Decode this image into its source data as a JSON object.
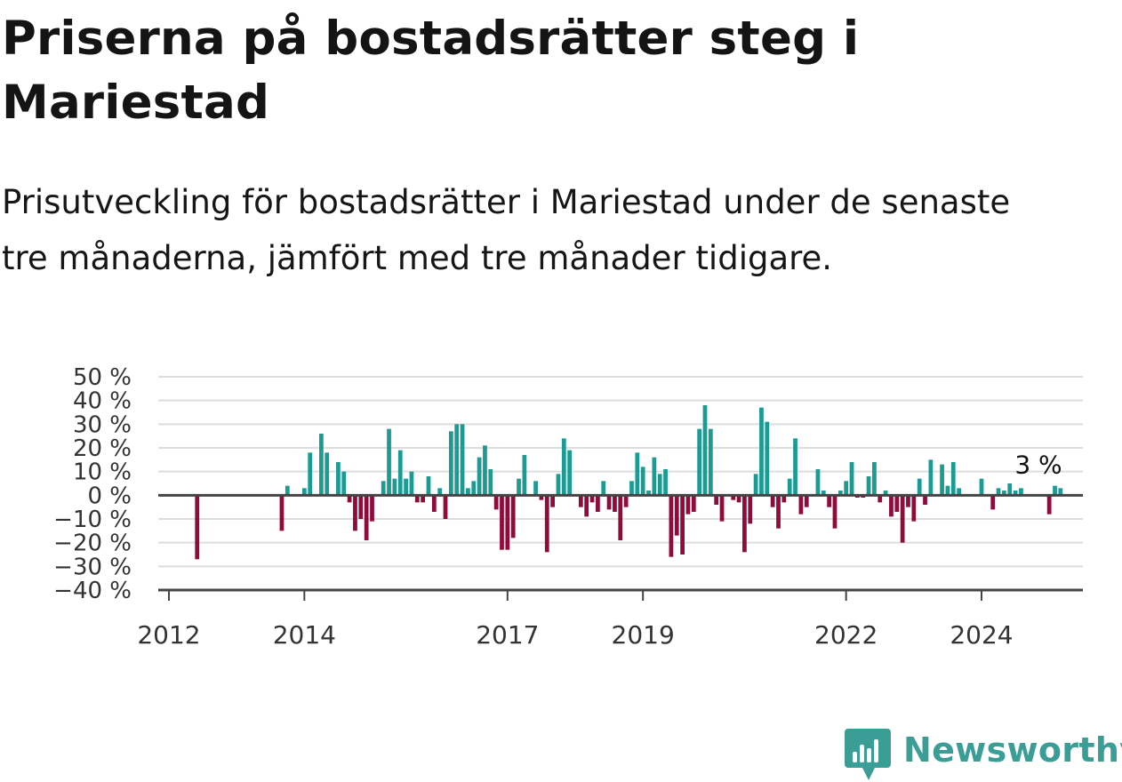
{
  "title": "Priserna på bostadsrätter steg i Mariestad",
  "subtitle": "Prisutveckling för bostadsrätter i Mariestad under de senaste tre månaderna, jämfört med tre månader tidigare.",
  "brand": {
    "name": "Newsworthy",
    "icon": "newsworthy-logo-icon",
    "color": "#3a9e97"
  },
  "colors": {
    "positive": "#1a9c94",
    "negative": "#900a3a",
    "grid": "#dddddd",
    "axis": "#444444",
    "text": "#333333"
  },
  "chart_data": {
    "type": "bar",
    "title": "Priserna på bostadsrätter steg i Mariestad",
    "xlabel": "",
    "ylabel": "",
    "ylim": [
      -40,
      50
    ],
    "y_ticks": [
      50,
      40,
      30,
      20,
      10,
      0,
      -10,
      -20,
      -30,
      -40
    ],
    "y_tick_labels": [
      "50 %",
      "40 %",
      "30 %",
      "20 %",
      "10 %",
      "0 %",
      "−10 %",
      "−20 %",
      "−30 %",
      "−40 %"
    ],
    "x_range": [
      "2011-12",
      "2025-10"
    ],
    "x_ticks": [
      {
        "date": "2012-01",
        "label": "2012"
      },
      {
        "date": "2014-01",
        "label": "2014"
      },
      {
        "date": "2017-01",
        "label": "2017"
      },
      {
        "date": "2019-01",
        "label": "2019"
      },
      {
        "date": "2022-01",
        "label": "2022"
      },
      {
        "date": "2024-01",
        "label": "2024"
      }
    ],
    "grid": true,
    "last_value_label": "3 %",
    "series": [
      {
        "values": [
          [
            "2012-06",
            -27
          ],
          [
            "2013-09",
            -15
          ],
          [
            "2013-10",
            4
          ],
          [
            "2014-01",
            3
          ],
          [
            "2014-02",
            18
          ],
          [
            "2014-04",
            26
          ],
          [
            "2014-05",
            18
          ],
          [
            "2014-07",
            14
          ],
          [
            "2014-08",
            10
          ],
          [
            "2014-09",
            -3
          ],
          [
            "2014-10",
            -15
          ],
          [
            "2014-11",
            -10
          ],
          [
            "2014-12",
            -19
          ],
          [
            "2015-01",
            -11
          ],
          [
            "2015-03",
            6
          ],
          [
            "2015-04",
            28
          ],
          [
            "2015-05",
            7
          ],
          [
            "2015-06",
            19
          ],
          [
            "2015-07",
            7
          ],
          [
            "2015-08",
            10
          ],
          [
            "2015-09",
            -3
          ],
          [
            "2015-10",
            -3
          ],
          [
            "2015-11",
            8
          ],
          [
            "2015-12",
            -7
          ],
          [
            "2016-01",
            3
          ],
          [
            "2016-02",
            -10
          ],
          [
            "2016-03",
            27
          ],
          [
            "2016-04",
            30
          ],
          [
            "2016-05",
            30
          ],
          [
            "2016-06",
            3
          ],
          [
            "2016-07",
            6
          ],
          [
            "2016-08",
            16
          ],
          [
            "2016-09",
            21
          ],
          [
            "2016-10",
            11
          ],
          [
            "2016-11",
            -6
          ],
          [
            "2016-12",
            -23
          ],
          [
            "2017-01",
            -23
          ],
          [
            "2017-02",
            -18
          ],
          [
            "2017-03",
            7
          ],
          [
            "2017-04",
            17
          ],
          [
            "2017-06",
            6
          ],
          [
            "2017-07",
            -2
          ],
          [
            "2017-08",
            -24
          ],
          [
            "2017-09",
            -5
          ],
          [
            "2017-10",
            9
          ],
          [
            "2017-11",
            24
          ],
          [
            "2017-12",
            19
          ],
          [
            "2018-02",
            -5
          ],
          [
            "2018-03",
            -9
          ],
          [
            "2018-04",
            -3
          ],
          [
            "2018-05",
            -7
          ],
          [
            "2018-06",
            6
          ],
          [
            "2018-07",
            -6
          ],
          [
            "2018-08",
            -7
          ],
          [
            "2018-09",
            -19
          ],
          [
            "2018-10",
            -5
          ],
          [
            "2018-11",
            6
          ],
          [
            "2018-12",
            18
          ],
          [
            "2019-01",
            12
          ],
          [
            "2019-02",
            2
          ],
          [
            "2019-03",
            16
          ],
          [
            "2019-04",
            9
          ],
          [
            "2019-05",
            11
          ],
          [
            "2019-06",
            -26
          ],
          [
            "2019-07",
            -17
          ],
          [
            "2019-08",
            -25
          ],
          [
            "2019-09",
            -8
          ],
          [
            "2019-10",
            -7
          ],
          [
            "2019-11",
            28
          ],
          [
            "2019-12",
            38
          ],
          [
            "2020-01",
            28
          ],
          [
            "2020-02",
            -4
          ],
          [
            "2020-03",
            -11
          ],
          [
            "2020-05",
            -2
          ],
          [
            "2020-06",
            -3
          ],
          [
            "2020-07",
            -24
          ],
          [
            "2020-08",
            -12
          ],
          [
            "2020-09",
            9
          ],
          [
            "2020-10",
            37
          ],
          [
            "2020-11",
            31
          ],
          [
            "2020-12",
            -5
          ],
          [
            "2021-01",
            -14
          ],
          [
            "2021-02",
            -3
          ],
          [
            "2021-03",
            7
          ],
          [
            "2021-04",
            24
          ],
          [
            "2021-05",
            -8
          ],
          [
            "2021-06",
            -5
          ],
          [
            "2021-08",
            11
          ],
          [
            "2021-09",
            2
          ],
          [
            "2021-10",
            -5
          ],
          [
            "2021-11",
            -14
          ],
          [
            "2021-12",
            2
          ],
          [
            "2022-01",
            6
          ],
          [
            "2022-02",
            14
          ],
          [
            "2022-03",
            -1
          ],
          [
            "2022-04",
            -1
          ],
          [
            "2022-05",
            8
          ],
          [
            "2022-06",
            14
          ],
          [
            "2022-07",
            -3
          ],
          [
            "2022-08",
            2
          ],
          [
            "2022-09",
            -9
          ],
          [
            "2022-10",
            -7
          ],
          [
            "2022-11",
            -20
          ],
          [
            "2022-12",
            -5
          ],
          [
            "2023-01",
            -11
          ],
          [
            "2023-02",
            7
          ],
          [
            "2023-03",
            -4
          ],
          [
            "2023-04",
            15
          ],
          [
            "2023-06",
            13
          ],
          [
            "2023-07",
            4
          ],
          [
            "2023-08",
            14
          ],
          [
            "2023-09",
            3
          ],
          [
            "2024-01",
            7
          ],
          [
            "2024-03",
            -6
          ],
          [
            "2024-04",
            3
          ],
          [
            "2024-05",
            2
          ],
          [
            "2024-06",
            5
          ],
          [
            "2024-07",
            2
          ],
          [
            "2024-08",
            3
          ],
          [
            "2025-01",
            -8
          ],
          [
            "2025-02",
            4
          ],
          [
            "2025-03",
            3
          ]
        ]
      }
    ]
  }
}
